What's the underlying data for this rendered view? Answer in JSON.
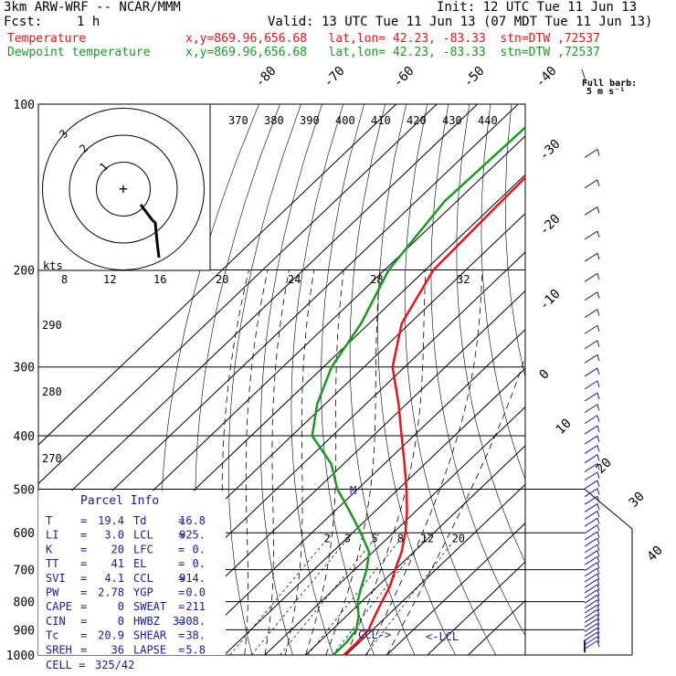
{
  "header": {
    "model": "3km ARW-WRF -- NCAR/MMM",
    "init": "Init: 12 UTC Tue 11 Jun 13",
    "fcst_label": "Fcst:",
    "fcst_value": "1 h",
    "valid": "Valid: 13 UTC Tue 11 Jun 13 (07 MDT Tue 11 Jun 13)",
    "temperature_label": "Temperature",
    "dewpoint_label": "Dewpoint temperature",
    "location": "x,y=869.96,656.68   lat,lon= 42.23, -83.33  stn=DTW ,72537"
  },
  "colors": {
    "temperature": "#e8141a",
    "dewpoint": "#1a9a24",
    "wind": "#1a1a9c",
    "hodograph": "#000000"
  },
  "chart_data": {
    "type": "line",
    "pressure_levels": [
      "100",
      "200",
      "300",
      "400",
      "500",
      "600",
      "700",
      "800",
      "900",
      "1000"
    ],
    "skewed_temperature_labels": [
      "-80",
      "-70",
      "-60",
      "-50",
      "-40",
      "-30",
      "-20",
      "-10",
      "0",
      "10",
      "20",
      "30",
      "40"
    ],
    "theta_labels": [
      "370",
      "380",
      "390",
      "400",
      "410",
      "420",
      "430",
      "440"
    ],
    "dry_adiabat_labels": [
      "290",
      "280",
      "270"
    ],
    "mixing_ratio_labels": [
      "2",
      "3",
      "5",
      "8",
      "12",
      "20"
    ],
    "hodograph": {
      "units": "kts",
      "ring_labels": [
        "3",
        "2",
        "1"
      ],
      "speed_ticks": [
        "8",
        "12",
        "16",
        "20",
        "24",
        "28",
        "32"
      ]
    },
    "wind_barb_legend": {
      "title": "Full barb:",
      "value": "5 m s⁻¹"
    },
    "lcl_label": "<-LCL",
    "ccl_label": "CCL->",
    "max_wind_marker": "M",
    "series": [
      {
        "name": "Temperature",
        "points": [
          [
            100,
            -60
          ],
          [
            150,
            -59
          ],
          [
            200,
            -58
          ],
          [
            250,
            -52
          ],
          [
            300,
            -43
          ],
          [
            350,
            -32
          ],
          [
            400,
            -23
          ],
          [
            450,
            -15
          ],
          [
            500,
            -8
          ],
          [
            550,
            -2
          ],
          [
            600,
            3
          ],
          [
            650,
            7
          ],
          [
            700,
            10
          ],
          [
            750,
            13
          ],
          [
            800,
            15
          ],
          [
            850,
            17
          ],
          [
            900,
            19
          ],
          [
            950,
            19.4
          ],
          [
            1000,
            19.4
          ]
        ]
      },
      {
        "name": "Dewpoint temperature",
        "points": [
          [
            100,
            -72
          ],
          [
            150,
            -73
          ],
          [
            200,
            -69
          ],
          [
            250,
            -62
          ],
          [
            300,
            -58
          ],
          [
            350,
            -52
          ],
          [
            400,
            -45
          ],
          [
            450,
            -33
          ],
          [
            500,
            -25
          ],
          [
            550,
            -16
          ],
          [
            600,
            -8
          ],
          [
            650,
            -1
          ],
          [
            700,
            3
          ],
          [
            750,
            6
          ],
          [
            800,
            9
          ],
          [
            850,
            13
          ],
          [
            900,
            16
          ],
          [
            950,
            16.8
          ],
          [
            1000,
            16.8
          ]
        ]
      }
    ]
  },
  "parcel_info": {
    "title": "Parcel Info",
    "rows": [
      {
        "k1": "T",
        "v1": "19.4",
        "k2": "Td",
        "v2": "16.8"
      },
      {
        "k1": "LI",
        "v1": "3.0",
        "k2": "LCL",
        "v2": "925."
      },
      {
        "k1": "K",
        "v1": "20",
        "k2": "LFC",
        "v2": "0."
      },
      {
        "k1": "TT",
        "v1": "41",
        "k2": "EL",
        "v2": "0."
      },
      {
        "k1": "SVI",
        "v1": "4.1",
        "k2": "CCL",
        "v2": "914."
      },
      {
        "k1": "PW",
        "v1": "2.78",
        "k2": "YGP",
        "v2": "0.0"
      },
      {
        "k1": "CAPE",
        "v1": "0",
        "k2": "SWEAT",
        "v2": "211"
      },
      {
        "k1": "CIN",
        "v1": "0",
        "k2": "HWBZ",
        "v2": "3308."
      },
      {
        "k1": "Tc",
        "v1": "20.9",
        "k2": "SHEAR",
        "v2": "38."
      },
      {
        "k1": "SREH",
        "v1": "36",
        "k2": "LAPSE",
        "v2": "5.8"
      }
    ],
    "cell_label": "CELL =",
    "cell_value": "325/42"
  }
}
